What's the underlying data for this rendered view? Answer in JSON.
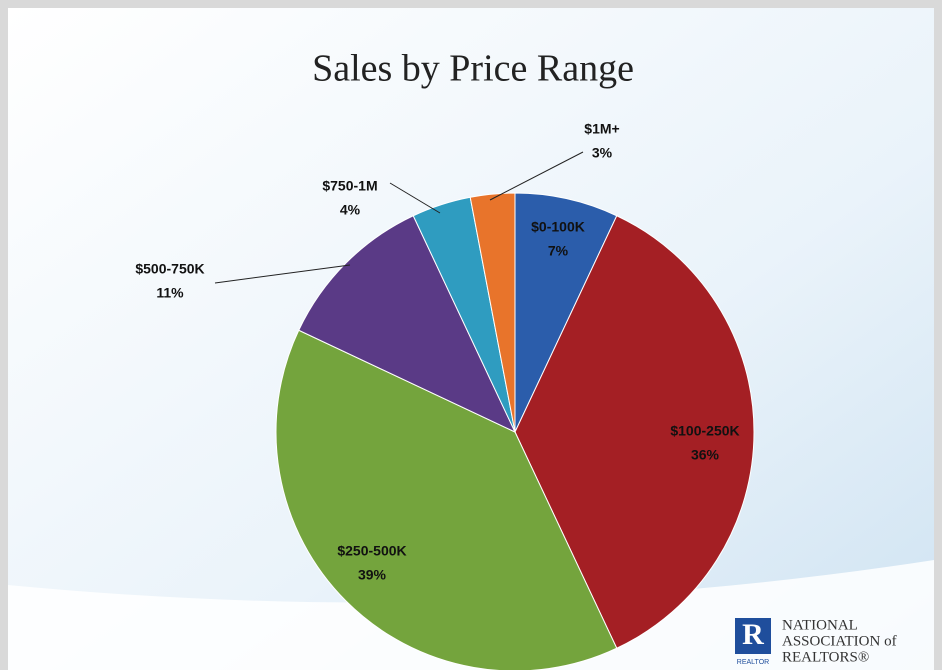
{
  "chart_data": {
    "type": "pie",
    "title": "Sales by Price Range",
    "categories": [
      "$0-100K",
      "$100-250K",
      "$250-500K",
      "$500-750K",
      "$750-1M",
      "$1M+"
    ],
    "values": [
      7,
      36,
      39,
      11,
      4,
      3
    ],
    "value_labels": [
      "7%",
      "36%",
      "39%",
      "11%",
      "4%",
      "3%"
    ],
    "colors": [
      "#2b5dab",
      "#a41f24",
      "#74a43d",
      "#5a3a86",
      "#2f9cc0",
      "#e8742b"
    ]
  },
  "logo": {
    "mark": "R",
    "caption": "REALTOR",
    "lines": [
      "NATIONAL",
      "ASSOCIATION of",
      "REALTORS®"
    ]
  }
}
